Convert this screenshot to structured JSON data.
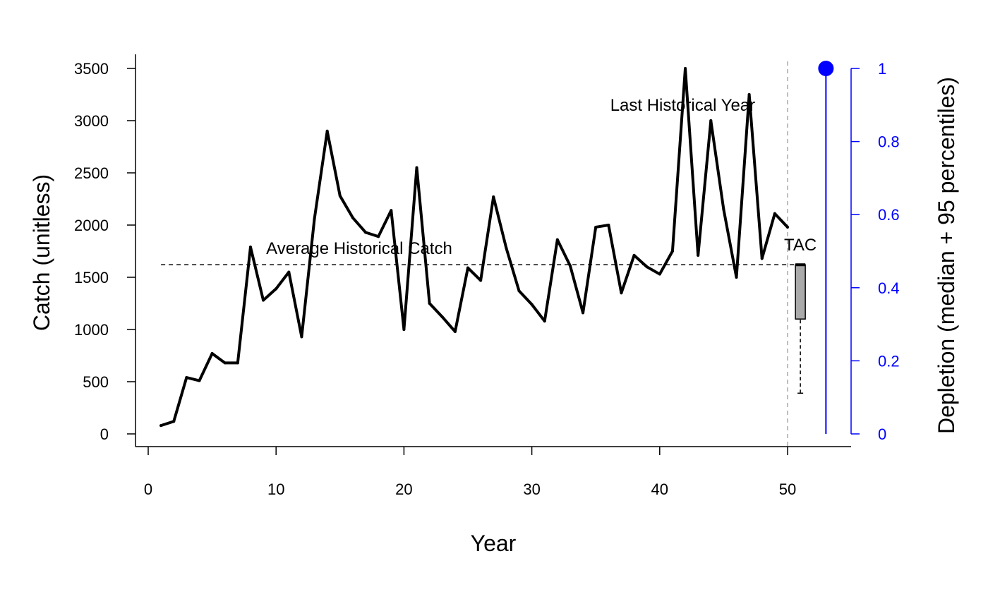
{
  "chart_data": {
    "type": "line",
    "xlabel": "Year",
    "ylabel": "Catch (unitless)",
    "y2label": "Depletion (median + 95 percentiles)",
    "xlim": [
      0,
      55
    ],
    "ylim": [
      0,
      3500
    ],
    "y2lim": [
      0,
      1
    ],
    "x_ticks": [
      0,
      10,
      20,
      30,
      40,
      50
    ],
    "y_ticks": [
      0,
      500,
      1000,
      1500,
      2000,
      2500,
      3000,
      3500
    ],
    "y2_ticks": [
      0,
      0.2,
      0.4,
      0.6,
      0.8,
      1
    ],
    "y2_tick_labels": [
      "0",
      "0.2",
      "0.4",
      "0.6",
      "0.8",
      "1"
    ],
    "grid": false,
    "series": [
      {
        "x": [
          1,
          2,
          3,
          4,
          5,
          6,
          7,
          8,
          9,
          10,
          11,
          12,
          13,
          14,
          15,
          16,
          17,
          18,
          19,
          20,
          21,
          22,
          23,
          24,
          25,
          26,
          27,
          28,
          29,
          30,
          31,
          32,
          33,
          34,
          35,
          36,
          37,
          38,
          39,
          40,
          41,
          42,
          43,
          44,
          45,
          46,
          47,
          48,
          49,
          50
        ],
        "values": [
          80,
          120,
          540,
          510,
          770,
          680,
          680,
          1790,
          1280,
          1390,
          1550,
          930,
          2060,
          2900,
          2280,
          2070,
          1930,
          1890,
          2140,
          1000,
          2550,
          1250,
          1120,
          980,
          1590,
          1470,
          2270,
          1780,
          1370,
          1240,
          1080,
          1860,
          1610,
          1160,
          1980,
          2000,
          1350,
          1710,
          1600,
          1530,
          1750,
          3500,
          1710,
          3000,
          2150,
          1500,
          3250,
          1680,
          2110,
          1980
        ],
        "color": "#000000"
      }
    ],
    "average_historical_catch": {
      "value": 1620,
      "label": "Average Historical Catch"
    },
    "last_historical_year": {
      "x": 50,
      "label": "Last Historical Year"
    },
    "tac": {
      "label": "TAC",
      "x": 51,
      "lower": 390,
      "q1": 1100,
      "median": 1620,
      "q3": 1620
    },
    "depletion": {
      "x": 53,
      "median": 1,
      "lower": 0,
      "upper": 1
    },
    "colors": {
      "series": "#000000",
      "depletion": "#0000ff",
      "reference_line": "#aaaaaa",
      "tac_box": "#aaaaaa"
    }
  }
}
